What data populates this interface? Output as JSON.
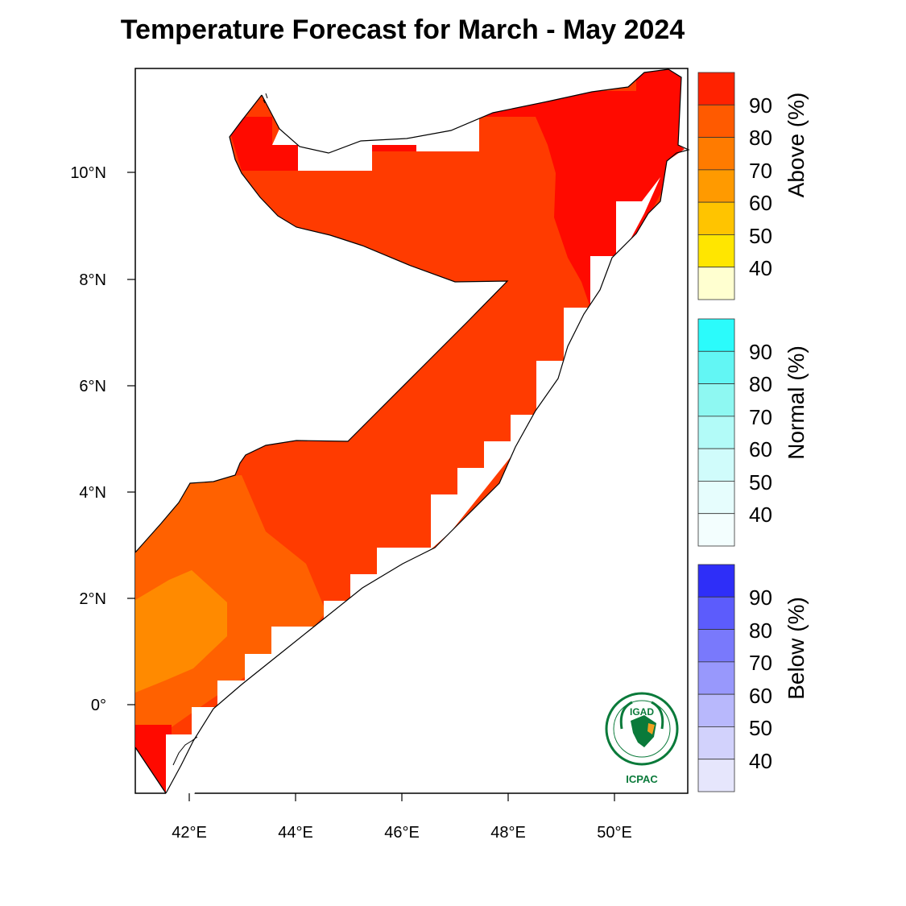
{
  "title": "Temperature Forecast for March - May 2024",
  "axes": {
    "x_ticks": [
      "42°E",
      "44°E",
      "46°E",
      "48°E",
      "50°E"
    ],
    "y_ticks": [
      "10°N",
      "8°N",
      "6°N",
      "4°N",
      "2°N",
      "0°"
    ]
  },
  "colorbars": [
    {
      "title": "Above (%)",
      "labels": [
        "90",
        "80",
        "70",
        "60",
        "50",
        "40"
      ],
      "colors": [
        "#ff2200",
        "#ff5a00",
        "#ff7b00",
        "#ff9a00",
        "#ffc400",
        "#ffe600",
        "#ffffd0"
      ]
    },
    {
      "title": "Normal (%)",
      "labels": [
        "90",
        "80",
        "70",
        "60",
        "50",
        "40"
      ],
      "colors": [
        "#2bfbfb",
        "#62f6f4",
        "#8ef8f2",
        "#b2fbf8",
        "#d0fcfb",
        "#e6fdfd",
        "#f3fefe"
      ]
    },
    {
      "title": "Below (%)",
      "labels": [
        "90",
        "80",
        "70",
        "60",
        "50",
        "40"
      ],
      "colors": [
        "#2e2ef8",
        "#5c5cfc",
        "#7979fc",
        "#9898fc",
        "#b8b8fc",
        "#d2d2fc",
        "#e6e6fc"
      ]
    }
  ],
  "map_colors": {
    "above_90": "#ff0a00",
    "above_80": "#ff3b00",
    "above_70": "#ff6100",
    "above_60": "#ff8a00",
    "outline": "#000000"
  },
  "logo": {
    "top_text": "IGAD",
    "bottom_text": "ICPAC",
    "icon": "igad-icpac-logo-icon"
  }
}
